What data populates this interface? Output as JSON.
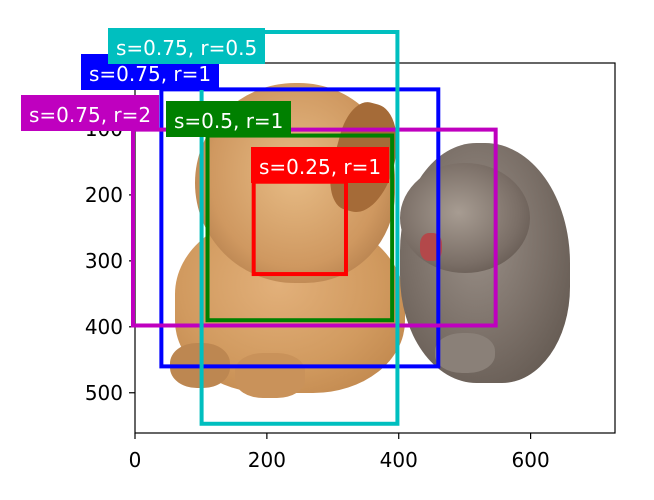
{
  "chart_data": {
    "type": "image-with-anchor-boxes",
    "image": "dog and cat photo",
    "xlim": [
      0,
      728
    ],
    "ylim": [
      561,
      0
    ],
    "xticks": [
      "0",
      "200",
      "400",
      "600"
    ],
    "yticks": [
      "0",
      "100",
      "200",
      "300",
      "400",
      "500"
    ],
    "boxes": [
      {
        "label": "s=0.75, r=1",
        "color": "#0000ff",
        "x0": 40,
        "y0": 40,
        "x1": 460,
        "y1": 460
      },
      {
        "label": "s=0.5, r=1",
        "color": "#008000",
        "x0": 110,
        "y0": 110,
        "x1": 390,
        "y1": 390
      },
      {
        "label": "s=0.25, r=1",
        "color": "#ff0000",
        "x0": 180,
        "y0": 180,
        "x1": 320,
        "y1": 320
      },
      {
        "label": "s=0.75, r=2",
        "color": "#bf00bf",
        "x0": -47,
        "y0": 101,
        "x1": 547,
        "y1": 398
      },
      {
        "label": "s=0.75, r=0.5",
        "color": "#00bfbf",
        "x0": 101,
        "y0": -47,
        "x1": 398,
        "y1": 547
      }
    ]
  }
}
